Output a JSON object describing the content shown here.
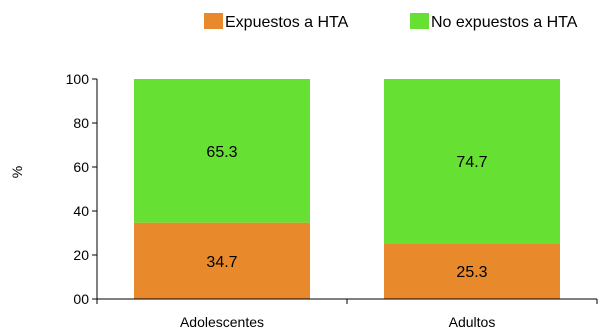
{
  "chart_data": {
    "type": "bar",
    "stacked": true,
    "categories": [
      "Adolescentes",
      "Adultos"
    ],
    "series": [
      {
        "name": "Expuestos a HTA",
        "values": [
          34.7,
          25.3
        ],
        "color": "#e8892c"
      },
      {
        "name": "No expuestos a HTA",
        "values": [
          65.3,
          74.7
        ],
        "color": "#66e033"
      }
    ],
    "data_labels": [
      [
        "34.7",
        "25.3"
      ],
      [
        "65.3",
        "74.7"
      ]
    ],
    "ylabel": "%",
    "xlabel": "",
    "ylim": [
      0,
      100
    ],
    "yticks": [
      0,
      20,
      40,
      60,
      80,
      100
    ],
    "ytick_labels": [
      "00",
      "20",
      "40",
      "60",
      "80",
      "100"
    ],
    "legend_position": "top-right",
    "grid": false
  }
}
